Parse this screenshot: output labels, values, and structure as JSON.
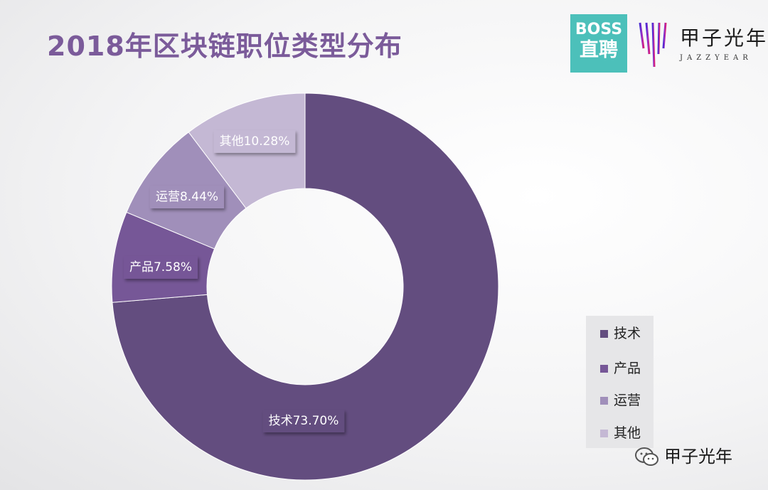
{
  "header": {
    "title": "2018年区块链职位类型分布",
    "boss_logo": {
      "line1": "BOSS",
      "line2": "直聘"
    },
    "jazzyear_logo": {
      "cn": "甲子光年",
      "en": "JAZZYEAR"
    }
  },
  "chart_data": {
    "type": "pie",
    "title": "2018年区块链职位类型分布",
    "donut": true,
    "categories": [
      "技术",
      "产品",
      "运营",
      "其他"
    ],
    "values": [
      73.7,
      7.58,
      8.44,
      10.28
    ],
    "labels": [
      "技术73.70%",
      "产品7.58%",
      "运营8.44%",
      "其他10.28%"
    ],
    "colors": [
      "#634d7f",
      "#765797",
      "#a08fba",
      "#c4b8d4"
    ],
    "legend": {
      "placement": "bottom-right",
      "entries": [
        "技术",
        "产品",
        "运营",
        "其他"
      ]
    }
  },
  "watermark": {
    "text": "甲子光年",
    "icon": "wechat-icon"
  }
}
